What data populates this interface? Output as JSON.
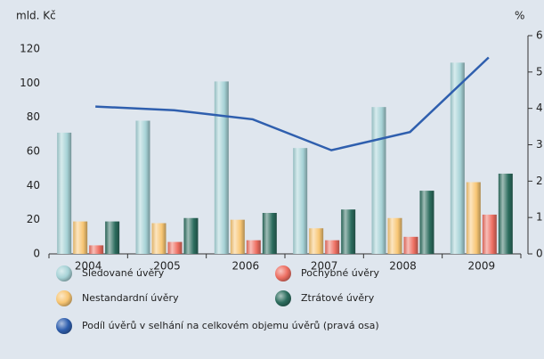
{
  "chart_data": {
    "type": "bar",
    "y_label": "mld. Kč",
    "y2_label": "%",
    "categories": [
      "2004",
      "2005",
      "2006",
      "2007",
      "2008",
      "2009"
    ],
    "series": [
      {
        "name": "Sledované úvěry",
        "color": "#a6d2d6",
        "values": [
          71,
          78,
          101,
          62,
          86,
          112
        ]
      },
      {
        "name": "Nestandardní úvěry",
        "color": "#f8c674",
        "values": [
          19,
          18,
          20,
          15,
          21,
          42
        ]
      },
      {
        "name": "Pochybné úvěry",
        "color": "#ee6f62",
        "values": [
          5,
          7,
          8,
          8,
          10,
          23
        ]
      },
      {
        "name": "Ztrátové úvěry",
        "color": "#2c6d5e",
        "values": [
          19,
          21,
          24,
          26,
          37,
          47
        ]
      },
      {
        "name": "Podíl úvěrů v selhání na celkovém objemu úvěrů (pravá osa)",
        "type": "line",
        "axis": "y2",
        "color": "#2f5fae",
        "values": [
          4.05,
          3.95,
          3.7,
          2.85,
          3.35,
          5.4
        ]
      }
    ],
    "ylim": [
      0,
      120
    ],
    "yticks": [
      0,
      20,
      40,
      60,
      80,
      100,
      120
    ],
    "y2lim": [
      0,
      6
    ],
    "y2ticks": [
      0,
      1,
      2,
      3,
      4,
      5,
      6
    ]
  }
}
